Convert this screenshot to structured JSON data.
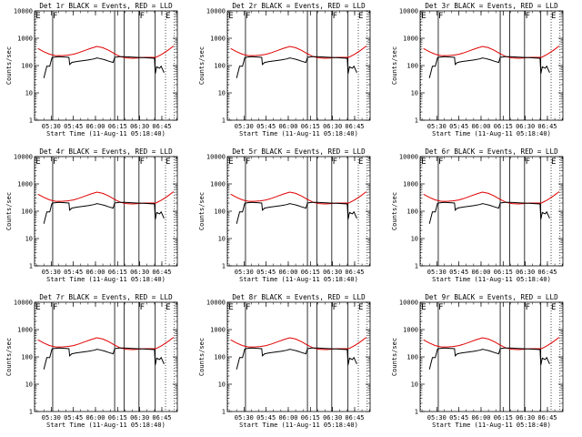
{
  "chart_data": {
    "type": "line",
    "panels": [
      {
        "title": "Det 1r BLACK = Events, RED = LLD"
      },
      {
        "title": "Det 2r BLACK = Events, RED = LLD"
      },
      {
        "title": "Det 3r BLACK = Events, RED = LLD"
      },
      {
        "title": "Det 4r BLACK = Events, RED = LLD"
      },
      {
        "title": "Det 5r BLACK = Events, RED = LLD"
      },
      {
        "title": "Det 6r BLACK = Events, RED = LLD"
      },
      {
        "title": "Det 7r BLACK = Events, RED = LLD"
      },
      {
        "title": "Det 8r BLACK = Events, RED = LLD"
      },
      {
        "title": "Det 9r BLACK = Events, RED = LLD"
      }
    ],
    "xlabel": "Start Time (11-Aug-11 05:18:40)",
    "ylabel": "Counts/sec",
    "x_tick_labels": [
      "05:30",
      "05:45",
      "06:00",
      "06:15",
      "06:30",
      "06:45"
    ],
    "x_tick_minutes": [
      30,
      45,
      60,
      75,
      90,
      105
    ],
    "xlim_minutes": [
      18.7,
      115.5
    ],
    "y_tick_labels": [
      "1",
      "10",
      "100",
      "1000",
      "10000"
    ],
    "ylim": [
      1,
      10000
    ],
    "yscale": "log",
    "region_labels": [
      {
        "letter": "E",
        "minute": 19.5
      },
      {
        "letter": "F",
        "minute": 31.0
      },
      {
        "letter": "F",
        "minute": 90.0
      },
      {
        "letter": "E",
        "minute": 107.5
      }
    ],
    "vlines_solid_minutes": [
      31.0,
      73.0,
      79.5,
      89.5,
      100.5
    ],
    "vlines_dotted_minutes": [
      19.0,
      107.5,
      113.5
    ],
    "series": [
      {
        "name": "LLD",
        "color": "#e00000",
        "x": [
          21,
          25,
          29,
          33,
          37,
          41,
          45,
          49,
          53,
          57,
          61,
          65,
          69,
          73,
          77,
          81,
          85,
          89,
          93,
          97,
          101,
          105,
          109,
          113
        ],
        "y": [
          420,
          320,
          260,
          230,
          230,
          240,
          260,
          300,
          360,
          430,
          500,
          450,
          360,
          270,
          210,
          190,
          185,
          190,
          200,
          200,
          200,
          260,
          360,
          520
        ]
      },
      {
        "name": "Events",
        "color": "#000000",
        "x": [
          25,
          27,
          29,
          30.5,
          31,
          35,
          39,
          42,
          42.5,
          44,
          47,
          51,
          55,
          59,
          61,
          63,
          66,
          69,
          72,
          73,
          76,
          80,
          84,
          88,
          92,
          96,
          100,
          100.5,
          101.5,
          103.5,
          104.5,
          106.5
        ],
        "y": [
          35,
          95,
          95,
          190,
          200,
          210,
          205,
          200,
          110,
          130,
          140,
          150,
          160,
          175,
          190,
          180,
          165,
          145,
          130,
          200,
          210,
          210,
          205,
          200,
          195,
          190,
          185,
          50,
          90,
          80,
          95,
          55
        ]
      }
    ],
    "grid": false,
    "legend": "in titles"
  }
}
